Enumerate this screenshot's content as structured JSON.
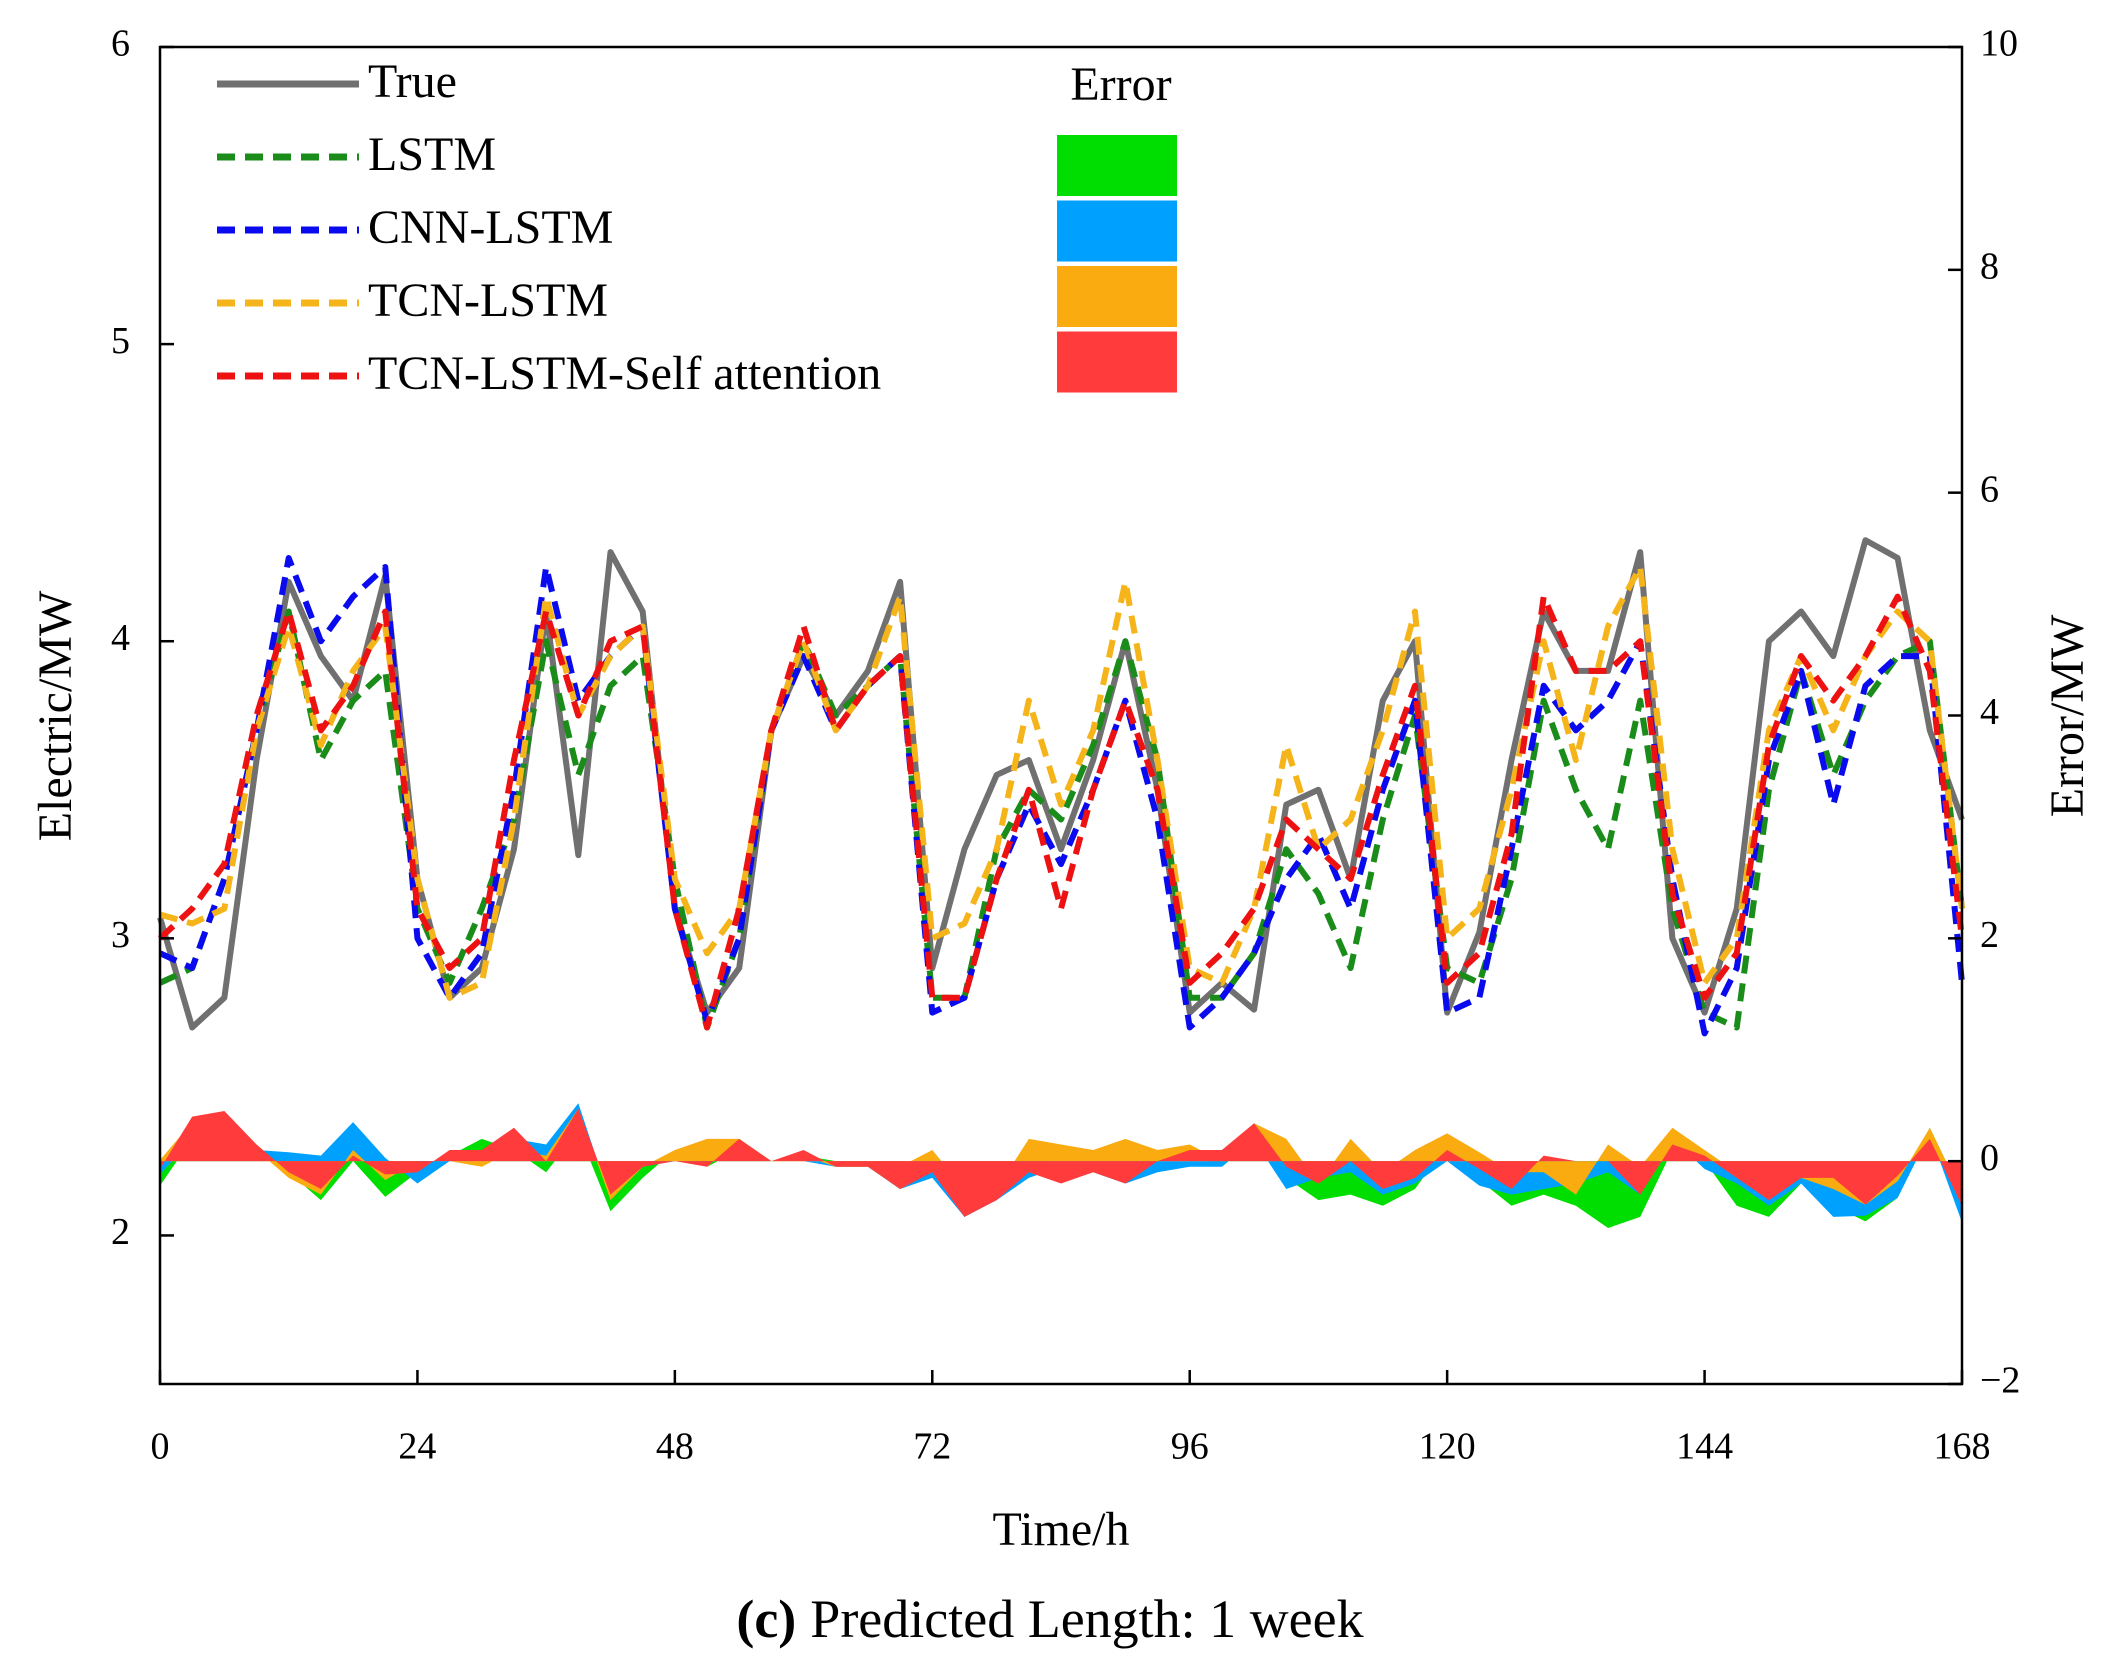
{
  "chart_data": {
    "type": "line",
    "caption_label": "(c)",
    "caption": "Predicted Length: 1 week",
    "xlabel": "Time/h",
    "ylabel": "Electric/MW",
    "y2label": "Error/MW",
    "error_legend_title": "Error",
    "xlim": [
      0,
      168
    ],
    "xticks": [
      0,
      24,
      48,
      72,
      96,
      120,
      144,
      168
    ],
    "ylim": [
      1.5,
      6
    ],
    "yticks": [
      2,
      3,
      4,
      5,
      6
    ],
    "y2lim": [
      -2,
      10
    ],
    "y2ticks": [
      {
        "value": -2,
        "label": "−2"
      },
      0,
      2,
      4,
      6,
      8,
      10
    ],
    "x": [
      0,
      3,
      6,
      9,
      12,
      15,
      18,
      21,
      24,
      27,
      30,
      33,
      36,
      39,
      42,
      45,
      48,
      51,
      54,
      57,
      60,
      63,
      66,
      69,
      72,
      75,
      78,
      81,
      84,
      87,
      90,
      93,
      96,
      99,
      102,
      105,
      108,
      111,
      114,
      117,
      120,
      123,
      126,
      129,
      132,
      135,
      138,
      141,
      144,
      147,
      150,
      153,
      156,
      159,
      162,
      165,
      168
    ],
    "series": [
      {
        "name": "True",
        "color": "#707070",
        "dash": false,
        "values": [
          3.07,
          2.7,
          2.8,
          3.6,
          4.2,
          3.95,
          3.8,
          4.22,
          3.2,
          2.8,
          2.9,
          3.3,
          4.1,
          3.28,
          4.3,
          4.1,
          3.1,
          2.75,
          2.9,
          3.7,
          3.95,
          3.75,
          3.9,
          4.2,
          2.9,
          3.3,
          3.55,
          3.6,
          3.3,
          3.6,
          4.0,
          3.5,
          2.75,
          2.85,
          2.76,
          3.45,
          3.5,
          3.2,
          3.8,
          4.0,
          2.75,
          3.02,
          3.6,
          4.1,
          3.9,
          3.9,
          4.3,
          3.0,
          2.75,
          3.1,
          4.0,
          4.1,
          3.95,
          4.34,
          4.28,
          3.7,
          3.4
        ]
      },
      {
        "name": "LSTM",
        "color": "#1a8c1a",
        "dash": true,
        "values": [
          2.85,
          2.9,
          3.2,
          3.7,
          4.1,
          3.6,
          3.8,
          3.9,
          3.1,
          2.85,
          3.1,
          3.4,
          4.0,
          3.55,
          3.85,
          3.95,
          3.2,
          2.7,
          3.0,
          3.7,
          4.0,
          3.75,
          3.85,
          3.95,
          2.8,
          2.8,
          3.3,
          3.5,
          3.4,
          3.65,
          4.0,
          3.6,
          2.8,
          2.8,
          2.95,
          3.3,
          3.15,
          2.9,
          3.4,
          3.75,
          2.9,
          2.85,
          3.2,
          3.8,
          3.5,
          3.3,
          3.8,
          3.1,
          2.75,
          2.7,
          3.5,
          3.9,
          3.55,
          3.8,
          3.95,
          4.0,
          3.1
        ]
      },
      {
        "name": "CNN-LSTM",
        "color": "#0a0aee",
        "dash": true,
        "values": [
          2.95,
          2.9,
          3.2,
          3.7,
          4.28,
          4.0,
          4.15,
          4.25,
          3.0,
          2.8,
          2.95,
          3.5,
          4.25,
          3.8,
          3.95,
          4.05,
          3.1,
          2.72,
          3.0,
          3.7,
          3.95,
          3.7,
          3.85,
          3.95,
          2.75,
          2.8,
          3.2,
          3.45,
          3.25,
          3.5,
          3.8,
          3.4,
          2.7,
          2.8,
          2.95,
          3.2,
          3.35,
          3.1,
          3.5,
          3.8,
          2.75,
          2.8,
          3.3,
          3.85,
          3.7,
          3.8,
          4.0,
          3.2,
          2.68,
          2.9,
          3.6,
          3.9,
          3.45,
          3.85,
          3.95,
          3.95,
          2.85
        ]
      },
      {
        "name": "TCN-LSTM",
        "color": "#f5b41a",
        "dash": true,
        "values": [
          3.08,
          3.05,
          3.1,
          3.7,
          4.05,
          3.65,
          3.9,
          4.05,
          3.2,
          2.8,
          2.85,
          3.4,
          4.15,
          3.75,
          3.95,
          4.05,
          3.2,
          2.95,
          3.1,
          3.7,
          4.0,
          3.7,
          3.85,
          4.15,
          3.0,
          3.05,
          3.3,
          3.8,
          3.45,
          3.7,
          4.2,
          3.6,
          2.9,
          2.85,
          3.1,
          3.65,
          3.3,
          3.4,
          3.7,
          4.1,
          3.0,
          3.1,
          3.5,
          4.0,
          3.6,
          4.05,
          4.25,
          3.3,
          2.85,
          3.0,
          3.7,
          3.95,
          3.7,
          3.95,
          4.1,
          4.0,
          3.1
        ]
      },
      {
        "name": "TCN-LSTM-Self attention",
        "color": "#ee1111",
        "dash": true,
        "values": [
          3.0,
          3.1,
          3.25,
          3.75,
          4.1,
          3.7,
          3.85,
          4.1,
          3.1,
          2.9,
          3.0,
          3.6,
          4.1,
          3.75,
          4.0,
          4.05,
          3.1,
          2.7,
          3.1,
          3.7,
          4.05,
          3.7,
          3.85,
          3.95,
          2.8,
          2.8,
          3.2,
          3.5,
          3.1,
          3.5,
          3.8,
          3.5,
          2.85,
          2.95,
          3.1,
          3.4,
          3.3,
          3.2,
          3.55,
          3.85,
          2.85,
          2.95,
          3.35,
          4.15,
          3.9,
          3.9,
          4.0,
          3.15,
          2.8,
          2.95,
          3.65,
          3.95,
          3.8,
          3.95,
          4.15,
          3.9,
          3.0
        ]
      }
    ],
    "error_series": [
      {
        "type": "area",
        "axis": "y2",
        "color": "#00dd00",
        "values": [
          -0.22,
          0.2,
          0.4,
          0.1,
          -0.1,
          -0.35,
          0,
          -0.32,
          -0.1,
          0.05,
          0.2,
          0.1,
          -0.1,
          0.27,
          -0.45,
          -0.15,
          0.1,
          -0.05,
          0.1,
          0,
          0.05,
          0,
          -0.05,
          -0.25,
          -0.1,
          -0.5,
          -0.25,
          -0.1,
          0.1,
          0.05,
          0,
          0.1,
          0.05,
          -0.05,
          0.19,
          -0.15,
          -0.35,
          -0.3,
          -0.4,
          -0.25,
          0.15,
          -0.17,
          -0.4,
          -0.3,
          -0.4,
          -0.6,
          -0.5,
          0.1,
          0,
          -0.4,
          -0.5,
          -0.2,
          -0.4,
          -0.54,
          -0.33,
          0.3,
          -0.3
        ]
      },
      {
        "type": "area",
        "axis": "y2",
        "color": "#00a0ff",
        "values": [
          -0.12,
          0.2,
          0.4,
          0.1,
          0.08,
          0.05,
          0.35,
          0.03,
          -0.2,
          0,
          0.05,
          0.2,
          0.15,
          0.52,
          -0.35,
          -0.05,
          0,
          -0.03,
          0.1,
          0,
          0,
          -0.05,
          -0.05,
          -0.25,
          -0.15,
          -0.5,
          -0.35,
          -0.15,
          -0.05,
          -0.1,
          -0.2,
          -0.1,
          -0.05,
          -0.05,
          0.19,
          -0.25,
          -0.15,
          -0.1,
          -0.3,
          -0.2,
          0,
          -0.22,
          -0.3,
          -0.25,
          -0.2,
          -0.1,
          -0.3,
          0.2,
          -0.07,
          -0.2,
          -0.4,
          -0.2,
          -0.5,
          -0.49,
          -0.33,
          0.25,
          -0.55
        ]
      },
      {
        "type": "area",
        "axis": "y2",
        "color": "#f9ab10",
        "values": [
          0.01,
          0.35,
          0.3,
          0.1,
          -0.15,
          -0.3,
          0.1,
          -0.17,
          0,
          0,
          -0.05,
          0.1,
          0.05,
          0.47,
          -0.35,
          -0.05,
          0.1,
          0.2,
          0.2,
          0,
          0.05,
          -0.05,
          -0.05,
          -0.05,
          0.1,
          -0.25,
          -0.25,
          0.2,
          0.15,
          0.1,
          0.2,
          0.1,
          0.15,
          0,
          0.34,
          0.2,
          -0.2,
          0.2,
          -0.1,
          0.1,
          0.25,
          0.08,
          -0.1,
          -0.1,
          -0.3,
          0.15,
          -0.05,
          0.3,
          0.1,
          -0.1,
          -0.3,
          -0.15,
          -0.25,
          -0.39,
          -0.18,
          0.3,
          -0.3
        ]
      },
      {
        "type": "area",
        "axis": "y2",
        "color": "#ff3b3b",
        "values": [
          -0.07,
          0.4,
          0.45,
          0.15,
          -0.1,
          -0.25,
          0.05,
          -0.12,
          -0.1,
          0.1,
          0.1,
          0.3,
          0,
          0.47,
          -0.3,
          -0.05,
          0,
          -0.05,
          0.2,
          0,
          0.1,
          -0.05,
          -0.05,
          -0.25,
          -0.1,
          -0.5,
          -0.35,
          -0.1,
          -0.2,
          -0.1,
          -0.2,
          0,
          0.1,
          0.1,
          0.34,
          -0.05,
          -0.2,
          0,
          -0.25,
          -0.15,
          0.1,
          -0.07,
          -0.25,
          0.05,
          0,
          0,
          -0.3,
          0.15,
          0.05,
          -0.15,
          -0.35,
          -0.15,
          -0.15,
          -0.39,
          -0.13,
          0.2,
          -0.4
        ]
      }
    ]
  }
}
